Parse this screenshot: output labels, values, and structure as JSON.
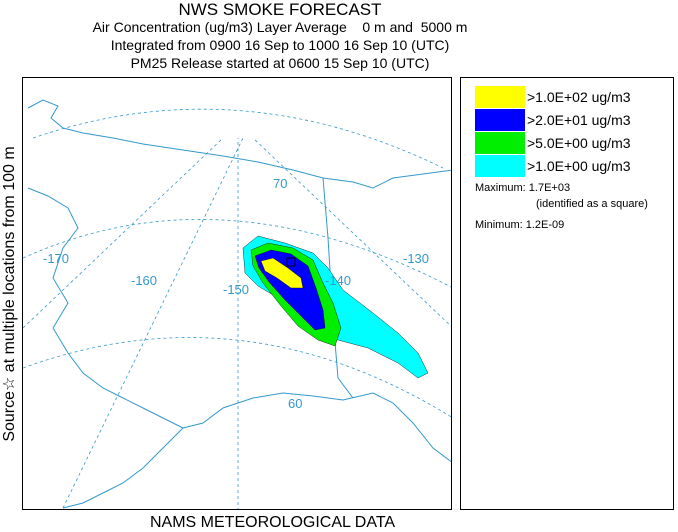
{
  "header": {
    "title": "NWS SMOKE FORECAST",
    "line2": "Air Concentration (ug/m3) Layer Average    0 m and  5000 m",
    "line3": "Integrated from 0900 16 Sep to 1000 16 Sep 10 (UTC)",
    "line4": "PM25 Release started at 0600 15 Sep 10 (UTC)"
  },
  "side_label": "Source☆ at multiple locations   from   100 m",
  "bottom_label": "NAMS METEOROLOGICAL DATA",
  "map": {
    "longitude_labels": [
      "-170",
      "-160",
      "-150",
      "-140",
      "-130"
    ],
    "latitude_labels": [
      "70",
      "60"
    ],
    "colors": {
      "coast": "#3399cc",
      "grid": "#3399cc",
      "label": "#3399cc"
    }
  },
  "legend": {
    "items": [
      {
        "label": ">1.0E+02 ug/m3",
        "color": "#ffff00"
      },
      {
        "label": ">2.0E+01 ug/m3",
        "color": "#0000ff"
      },
      {
        "label": ">5.0E+00 ug/m3",
        "color": "#00ee00"
      },
      {
        "label": ">1.0E+00 ug/m3",
        "color": "#00ffff"
      }
    ],
    "maximum": "Maximum: 1.7E+03",
    "maximum_note": "(identified as a square)",
    "minimum": "Minimum: 1.2E-09"
  }
}
